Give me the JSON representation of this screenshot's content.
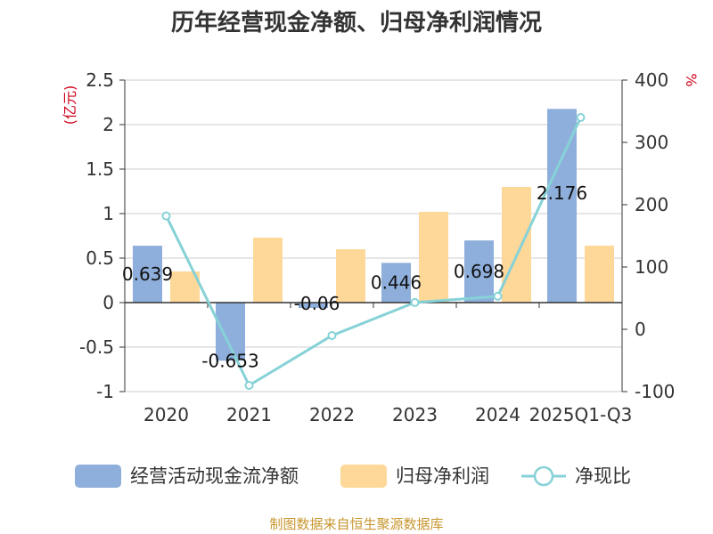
{
  "source": "制图数据来自恒生聚源数据库",
  "chart_data": {
    "type": "bar",
    "title": "历年经营现金净额、归母净利润情况",
    "categories": [
      "2020",
      "2021",
      "2022",
      "2023",
      "2024",
      "2025Q1-Q3"
    ],
    "y_left_unit": "(亿元)",
    "y_right_unit": "%",
    "y_left_range": [
      -1,
      2.5
    ],
    "y_left_ticks": [
      "2.5",
      "2",
      "1.5",
      "1",
      "0.5",
      "0",
      "-0.5",
      "-1"
    ],
    "y_right_range": [
      -100,
      400
    ],
    "y_right_ticks": [
      "400",
      "300",
      "200",
      "100",
      "0",
      "-100"
    ],
    "grid": true,
    "legend_position": "bottom",
    "series": [
      {
        "name": "经营活动现金流净额",
        "type": "bar",
        "axis": "left",
        "color": "#8eaedb",
        "values": [
          0.639,
          -0.653,
          -0.06,
          0.446,
          0.698,
          2.176
        ],
        "labels": [
          "0.639",
          "-0.653",
          "-0.06",
          "0.446",
          "0.698",
          "2.176"
        ]
      },
      {
        "name": "归母净利润",
        "type": "bar",
        "axis": "left",
        "color": "#fed898",
        "values": [
          0.35,
          0.73,
          0.6,
          1.02,
          1.3,
          0.64
        ]
      },
      {
        "name": "净现比",
        "type": "line",
        "axis": "right",
        "color": "#86d2d7",
        "values": [
          182,
          -90,
          -10,
          43,
          53,
          340
        ]
      }
    ]
  }
}
